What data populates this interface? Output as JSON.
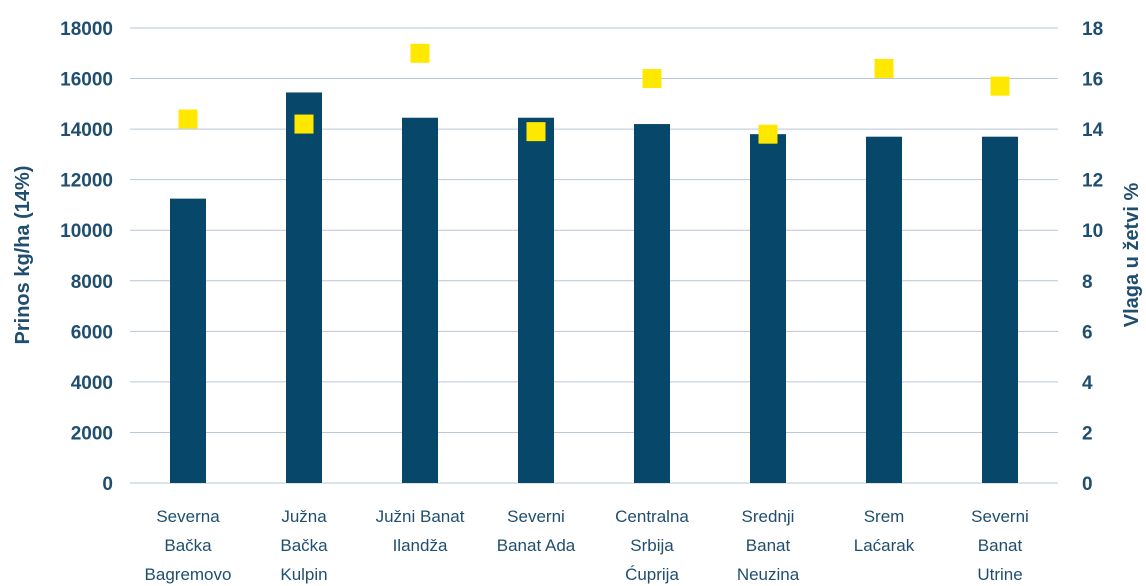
{
  "chart_data": {
    "type": "bar",
    "categories": [
      [
        "Severna",
        "Bačka",
        "Bagremovo"
      ],
      [
        "Južna",
        "Bačka",
        "Kulpin"
      ],
      [
        "Južni Banat",
        "Ilandža"
      ],
      [
        "Severni",
        "Banat Ada"
      ],
      [
        "Centralna",
        "Srbija",
        "Ćuprija"
      ],
      [
        "Srednji",
        "Banat",
        "Neuzina"
      ],
      [
        "Srem",
        "Laćarak"
      ],
      [
        "Severni",
        "Banat",
        "Utrine"
      ]
    ],
    "series": [
      {
        "name": "",
        "type": "bar",
        "axis": "left",
        "color": "#07476a",
        "values": [
          11250,
          15450,
          14450,
          14450,
          14200,
          13800,
          13700,
          13700
        ]
      },
      {
        "name": "",
        "type": "scatter",
        "axis": "right",
        "color": "#ffe800",
        "values": [
          14.4,
          14.2,
          17.0,
          13.9,
          16.0,
          13.8,
          16.4,
          15.7
        ]
      }
    ],
    "ylabel": "Prinos kg/ha (14%)",
    "y2label": "Vlaga u žetvi %",
    "ylim": [
      0,
      18000
    ],
    "y2lim": [
      0,
      18
    ],
    "yticks": [
      "0",
      "2000",
      "4000",
      "6000",
      "8000",
      "10000",
      "12000",
      "14000",
      "16000",
      "18000"
    ],
    "y2ticks": [
      "0",
      "2",
      "4",
      "6",
      "8",
      "10",
      "12",
      "14",
      "16",
      "18"
    ],
    "grid": true,
    "legend": "none",
    "text_color": "#1f4e6f"
  }
}
